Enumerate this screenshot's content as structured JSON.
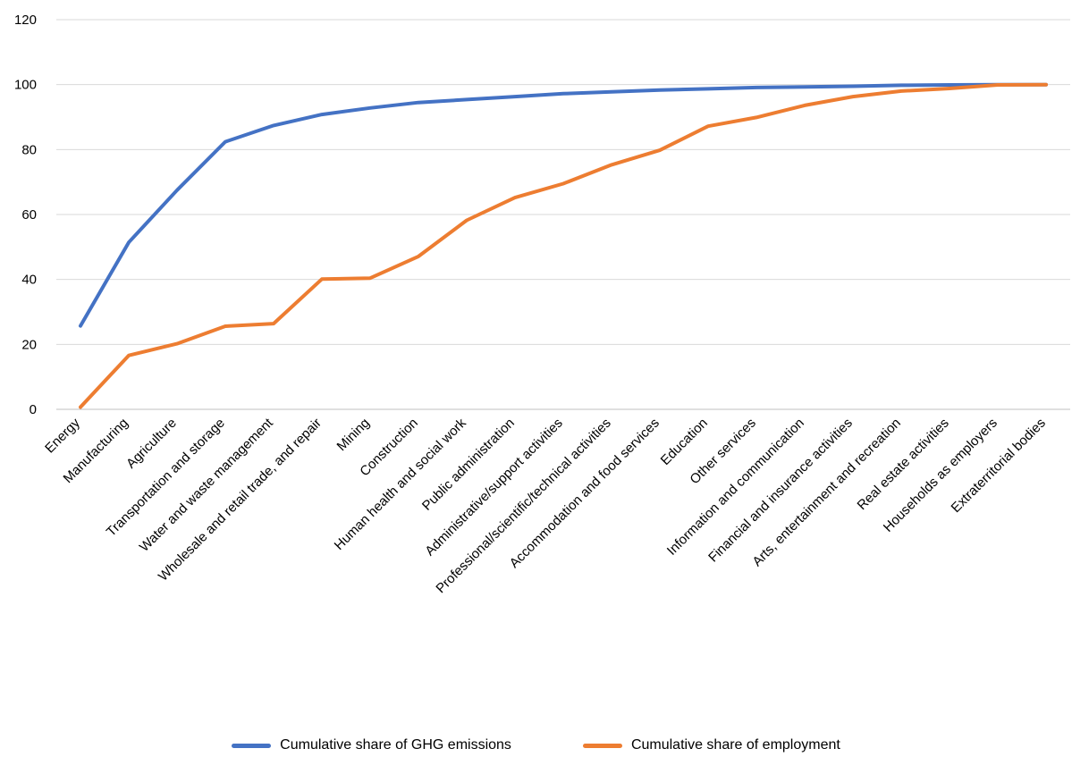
{
  "chart_data": {
    "type": "line",
    "categories": [
      "Energy",
      "Manufacturing",
      "Agriculture",
      "Transportation and storage",
      "Water and waste management",
      "Wholesale and retail trade, and repair",
      "Mining",
      "Construction",
      "Human health and social work",
      "Public administration",
      "Administrative/support activities",
      "Professional/scientific/technical activities",
      "Accommodation and food services",
      "Education",
      "Other services",
      "Information and communication",
      "Financial and insurance activities",
      "Arts, entertainment and recreation",
      "Real estate activities",
      "Households as employers",
      "Extraterritorial bodies"
    ],
    "series": [
      {
        "name": "Cumulative share of GHG emissions",
        "color": "#4472C4",
        "values": [
          25.7,
          51.4,
          67.5,
          82.4,
          87.4,
          90.8,
          92.8,
          94.5,
          95.4,
          96.3,
          97.2,
          97.8,
          98.3,
          98.7,
          99.1,
          99.3,
          99.5,
          99.8,
          99.9,
          100,
          100
        ]
      },
      {
        "name": "Cumulative share of employment",
        "color": "#ED7D31",
        "values": [
          0.7,
          16.6,
          20.2,
          25.6,
          26.4,
          40.1,
          40.4,
          47.1,
          58.2,
          65.2,
          69.5,
          75.3,
          79.8,
          87.2,
          89.9,
          93.6,
          96.3,
          98.0,
          98.8,
          99.9,
          100
        ]
      }
    ],
    "yticks": [
      0,
      20,
      40,
      60,
      80,
      100,
      120
    ],
    "ylim": [
      0,
      120
    ],
    "grid": true,
    "legend_position": "bottom"
  },
  "legend": {
    "items": [
      {
        "label": "Cumulative share of GHG emissions",
        "color": "#4472C4"
      },
      {
        "label": "Cumulative share of employment",
        "color": "#ED7D31"
      }
    ]
  }
}
